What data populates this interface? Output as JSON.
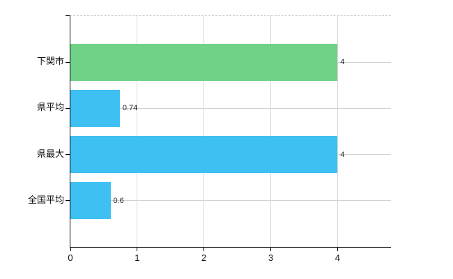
{
  "colors": {
    "bar_default": "#3EC0F3",
    "bar_highlight": "#6FD287",
    "axis_line": "#000000",
    "vertical_gridline": "#d8d8d8",
    "horizontal_gridline": "#ccd6cc",
    "plot_top_border": "#c8c8c8",
    "text": "#111111"
  },
  "chart_data": {
    "type": "bar",
    "orientation": "horizontal",
    "title": "",
    "categories": [
      "下関市",
      "県平均",
      "県最大",
      "全国平均"
    ],
    "values": [
      4,
      0.74,
      4,
      0.6
    ],
    "value_labels": [
      "4",
      "0.74",
      "4",
      "0.6"
    ],
    "bar_colors": [
      "#6FD287",
      "#3EC0F3",
      "#3EC0F3",
      "#3EC0F3"
    ],
    "x_ticks": [
      0,
      1,
      2,
      3,
      4
    ],
    "x_tick_labels": [
      "0",
      "1",
      "2",
      "3",
      "4"
    ],
    "xlim": [
      0,
      4.8
    ],
    "grid": true,
    "legend_position": "none",
    "xlabel": "",
    "ylabel": ""
  }
}
